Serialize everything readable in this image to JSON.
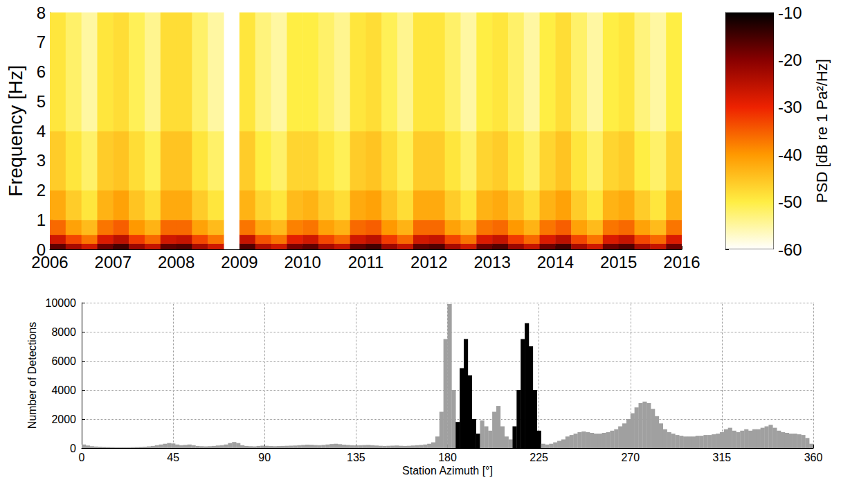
{
  "chart_data": [
    {
      "type": "heatmap",
      "y_label": "Frequency [Hz]",
      "time_edges": [
        2006,
        2006.25,
        2006.5,
        2006.75,
        2007,
        2007.25,
        2007.5,
        2007.75,
        2008,
        2008.25,
        2008.5,
        2008.75,
        2009,
        2009.25,
        2009.5,
        2009.75,
        2010,
        2010.25,
        2010.5,
        2010.75,
        2011,
        2011.25,
        2011.5,
        2011.75,
        2012,
        2012.25,
        2012.5,
        2012.75,
        2013,
        2013.25,
        2013.5,
        2013.75,
        2014,
        2014.25,
        2014.5,
        2014.75,
        2015,
        2015.25,
        2015.5,
        2015.75,
        2016
      ],
      "frequency_edges": [
        0,
        0.2,
        0.5,
        1,
        2,
        4,
        8
      ],
      "psd": [
        [
          -17,
          -23,
          -27,
          -18,
          -15,
          -22,
          -26,
          -17,
          -16,
          -23,
          -27,
          null,
          -16,
          -24,
          -27,
          -19,
          -17,
          -23,
          -26,
          -17,
          -15,
          -22,
          -26,
          -17,
          -16,
          -23,
          -27,
          -18,
          -16,
          -22,
          -26,
          -18,
          -15,
          -23,
          -27,
          -18,
          -16,
          -23,
          -26,
          -18
        ],
        [
          -27,
          -33,
          -37,
          -28,
          -25,
          -32,
          -36,
          -27,
          -26,
          -33,
          -37,
          null,
          -26,
          -34,
          -37,
          -29,
          -27,
          -33,
          -36,
          -27,
          -25,
          -32,
          -36,
          -27,
          -26,
          -33,
          -37,
          -28,
          -26,
          -32,
          -36,
          -28,
          -25,
          -33,
          -37,
          -28,
          -26,
          -33,
          -36,
          -28
        ],
        [
          -36,
          -41,
          -44,
          -37,
          -35,
          -40,
          -43,
          -36,
          -36,
          -41,
          -44,
          null,
          -37,
          -42,
          -44,
          -38,
          -37,
          -41,
          -43,
          -36,
          -35,
          -40,
          -43,
          -36,
          -36,
          -41,
          -44,
          -37,
          -36,
          -40,
          -43,
          -37,
          -35,
          -41,
          -44,
          -37,
          -36,
          -41,
          -44,
          -37
        ],
        [
          -42,
          -46,
          -49,
          -43,
          -41,
          -45,
          -48,
          -42,
          -42,
          -46,
          -49,
          null,
          -43,
          -47,
          -49,
          -44,
          -43,
          -46,
          -48,
          -42,
          -41,
          -45,
          -48,
          -42,
          -42,
          -46,
          -49,
          -43,
          -42,
          -45,
          -48,
          -43,
          -41,
          -46,
          -49,
          -43,
          -42,
          -46,
          -49,
          -43
        ],
        [
          -46,
          -49,
          -52,
          -46,
          -45,
          -48,
          -51,
          -45,
          -45,
          -49,
          -52,
          null,
          -46,
          -50,
          -52,
          -47,
          -47,
          -49,
          -51,
          -46,
          -45,
          -48,
          -51,
          -46,
          -46,
          -49,
          -52,
          -47,
          -46,
          -49,
          -52,
          -47,
          -45,
          -49,
          -52,
          -47,
          -46,
          -50,
          -52,
          -47
        ],
        [
          -49,
          -52,
          -55,
          -49,
          -48,
          -51,
          -54,
          -48,
          -48,
          -52,
          -55,
          null,
          -49,
          -53,
          -55,
          -50,
          -50,
          -52,
          -54,
          -49,
          -48,
          -51,
          -54,
          -49,
          -49,
          -52,
          -55,
          -50,
          -49,
          -52,
          -55,
          -50,
          -48,
          -52,
          -55,
          -50,
          -49,
          -53,
          -55,
          -50
        ]
      ],
      "xlim": [
        2006,
        2016
      ],
      "xticks": [
        2006,
        2007,
        2008,
        2009,
        2010,
        2011,
        2012,
        2013,
        2014,
        2015,
        2016
      ],
      "ylim": [
        0,
        8
      ],
      "yticks": [
        0,
        1,
        2,
        3,
        4,
        5,
        6,
        7,
        8
      ],
      "grid": false,
      "colorbar": {
        "label": "PSD [dB re 1 Pa²/Hz]",
        "range": [
          -60,
          -10
        ],
        "ticks": [
          -60,
          -50,
          -40,
          -30,
          -20,
          -10
        ],
        "colors": [
          "#ffffff",
          "#ffee44",
          "#ff9900",
          "#ee2200",
          "#880000",
          "#000000"
        ]
      }
    },
    {
      "type": "histogram",
      "x_label": "Station Azimuth [°]",
      "y_label": "Number of Detections",
      "bins": [
        0,
        2,
        4,
        6,
        8,
        10,
        12,
        14,
        16,
        18,
        20,
        22,
        24,
        26,
        28,
        30,
        32,
        34,
        36,
        38,
        40,
        42,
        44,
        46,
        48,
        50,
        52,
        54,
        56,
        58,
        60,
        62,
        64,
        66,
        68,
        70,
        72,
        74,
        76,
        78,
        80,
        82,
        84,
        86,
        88,
        90,
        92,
        94,
        96,
        98,
        100,
        102,
        104,
        106,
        108,
        110,
        112,
        114,
        116,
        118,
        120,
        122,
        124,
        126,
        128,
        130,
        132,
        134,
        136,
        138,
        140,
        142,
        144,
        146,
        148,
        150,
        152,
        154,
        156,
        158,
        160,
        162,
        164,
        166,
        168,
        170,
        172,
        174,
        176,
        178,
        180,
        182,
        184,
        186,
        188,
        190,
        192,
        194,
        196,
        198,
        200,
        202,
        204,
        206,
        208,
        210,
        212,
        214,
        216,
        218,
        220,
        222,
        224,
        226,
        228,
        230,
        232,
        234,
        236,
        238,
        240,
        242,
        244,
        246,
        248,
        250,
        252,
        254,
        256,
        258,
        260,
        262,
        264,
        266,
        268,
        270,
        272,
        274,
        276,
        278,
        280,
        282,
        284,
        286,
        288,
        290,
        292,
        294,
        296,
        298,
        300,
        302,
        304,
        306,
        308,
        310,
        312,
        314,
        316,
        318,
        320,
        322,
        324,
        326,
        328,
        330,
        332,
        334,
        336,
        338,
        340,
        342,
        344,
        346,
        348,
        350,
        352,
        354,
        356,
        358,
        360
      ],
      "values": [
        250,
        180,
        130,
        110,
        100,
        90,
        80,
        70,
        60,
        60,
        60,
        60,
        70,
        80,
        90,
        100,
        120,
        150,
        200,
        250,
        300,
        350,
        320,
        250,
        200,
        220,
        250,
        200,
        150,
        130,
        120,
        130,
        150,
        180,
        200,
        250,
        350,
        420,
        350,
        200,
        150,
        130,
        120,
        150,
        170,
        160,
        140,
        130,
        140,
        150,
        160,
        170,
        180,
        200,
        220,
        240,
        230,
        210,
        200,
        220,
        250,
        280,
        300,
        270,
        240,
        220,
        200,
        190,
        200,
        210,
        220,
        200,
        180,
        160,
        150,
        160,
        170,
        180,
        160,
        150,
        160,
        180,
        200,
        220,
        250,
        300,
        400,
        800,
        2500,
        7500,
        9900,
        4000,
        1800,
        5500,
        7500,
        5000,
        2000,
        1000,
        1900,
        1500,
        1200,
        2500,
        2900,
        1500,
        800,
        600,
        1500,
        4000,
        7500,
        8600,
        7000,
        4000,
        1200,
        300,
        250,
        300,
        400,
        500,
        600,
        800,
        900,
        1000,
        1100,
        1150,
        1100,
        1050,
        1000,
        1000,
        1050,
        1100,
        1200,
        1300,
        1500,
        1700,
        2000,
        2400,
        2800,
        3100,
        3200,
        3100,
        2700,
        2200,
        1700,
        1300,
        1100,
        1000,
        900,
        850,
        800,
        800,
        800,
        850,
        850,
        900,
        900,
        950,
        1000,
        1100,
        1300,
        1400,
        1200,
        1100,
        1200,
        1300,
        1200,
        1300,
        1300,
        1400,
        1500,
        1600,
        1400,
        1200,
        1100,
        1050,
        1000,
        1000,
        950,
        900,
        700,
        300
      ],
      "colors": [
        "#a0a0a0",
        "#a0a0a0",
        "#a0a0a0",
        "#a0a0a0",
        "#a0a0a0",
        "#a0a0a0",
        "#a0a0a0",
        "#a0a0a0",
        "#a0a0a0",
        "#a0a0a0",
        "#a0a0a0",
        "#a0a0a0",
        "#a0a0a0",
        "#a0a0a0",
        "#a0a0a0",
        "#a0a0a0",
        "#a0a0a0",
        "#a0a0a0",
        "#a0a0a0",
        "#a0a0a0",
        "#a0a0a0",
        "#a0a0a0",
        "#a0a0a0",
        "#a0a0a0",
        "#a0a0a0",
        "#a0a0a0",
        "#a0a0a0",
        "#a0a0a0",
        "#a0a0a0",
        "#a0a0a0",
        "#a0a0a0",
        "#a0a0a0",
        "#a0a0a0",
        "#a0a0a0",
        "#a0a0a0",
        "#a0a0a0",
        "#a0a0a0",
        "#a0a0a0",
        "#a0a0a0",
        "#a0a0a0",
        "#a0a0a0",
        "#a0a0a0",
        "#a0a0a0",
        "#a0a0a0",
        "#a0a0a0",
        "#a0a0a0",
        "#a0a0a0",
        "#a0a0a0",
        "#a0a0a0",
        "#a0a0a0",
        "#a0a0a0",
        "#a0a0a0",
        "#a0a0a0",
        "#a0a0a0",
        "#a0a0a0",
        "#a0a0a0",
        "#a0a0a0",
        "#a0a0a0",
        "#a0a0a0",
        "#a0a0a0",
        "#a0a0a0",
        "#a0a0a0",
        "#a0a0a0",
        "#a0a0a0",
        "#a0a0a0",
        "#a0a0a0",
        "#a0a0a0",
        "#a0a0a0",
        "#a0a0a0",
        "#a0a0a0",
        "#a0a0a0",
        "#a0a0a0",
        "#a0a0a0",
        "#a0a0a0",
        "#a0a0a0",
        "#a0a0a0",
        "#a0a0a0",
        "#a0a0a0",
        "#a0a0a0",
        "#a0a0a0",
        "#a0a0a0",
        "#a0a0a0",
        "#a0a0a0",
        "#a0a0a0",
        "#a0a0a0",
        "#a0a0a0",
        "#a0a0a0",
        "#a0a0a0",
        "#a0a0a0",
        "#a0a0a0",
        "#a0a0a0",
        "#a0a0a0",
        "#000000",
        "#000000",
        "#000000",
        "#000000",
        "#000000",
        "#000000",
        "#a0a0a0",
        "#a0a0a0",
        "#a0a0a0",
        "#a0a0a0",
        "#a0a0a0",
        "#a0a0a0",
        "#a0a0a0",
        "#a0a0a0",
        "#000000",
        "#000000",
        "#000000",
        "#000000",
        "#000000",
        "#000000",
        "#000000",
        "#a0a0a0",
        "#a0a0a0",
        "#a0a0a0",
        "#a0a0a0",
        "#a0a0a0",
        "#a0a0a0",
        "#a0a0a0",
        "#a0a0a0",
        "#a0a0a0",
        "#a0a0a0",
        "#a0a0a0",
        "#a0a0a0",
        "#a0a0a0",
        "#a0a0a0",
        "#a0a0a0",
        "#a0a0a0",
        "#a0a0a0",
        "#a0a0a0",
        "#a0a0a0",
        "#a0a0a0",
        "#a0a0a0",
        "#a0a0a0",
        "#a0a0a0",
        "#a0a0a0",
        "#a0a0a0",
        "#a0a0a0",
        "#a0a0a0",
        "#a0a0a0",
        "#a0a0a0",
        "#a0a0a0",
        "#a0a0a0",
        "#a0a0a0",
        "#a0a0a0",
        "#a0a0a0",
        "#a0a0a0",
        "#a0a0a0",
        "#a0a0a0",
        "#a0a0a0",
        "#a0a0a0",
        "#a0a0a0",
        "#a0a0a0",
        "#a0a0a0",
        "#a0a0a0",
        "#a0a0a0",
        "#a0a0a0",
        "#a0a0a0",
        "#a0a0a0",
        "#a0a0a0",
        "#a0a0a0",
        "#a0a0a0",
        "#a0a0a0",
        "#a0a0a0",
        "#a0a0a0",
        "#a0a0a0",
        "#a0a0a0",
        "#a0a0a0",
        "#a0a0a0",
        "#a0a0a0",
        "#a0a0a0",
        "#a0a0a0",
        "#a0a0a0",
        "#a0a0a0",
        "#a0a0a0",
        "#a0a0a0",
        "#a0a0a0",
        "#a0a0a0",
        "#a0a0a0"
      ],
      "xlim": [
        0,
        360
      ],
      "xticks": [
        0,
        45,
        90,
        135,
        180,
        225,
        270,
        315,
        360
      ],
      "ylim": [
        0,
        10000
      ],
      "yticks": [
        0,
        2000,
        4000,
        6000,
        8000,
        10000
      ],
      "grid": true
    }
  ]
}
